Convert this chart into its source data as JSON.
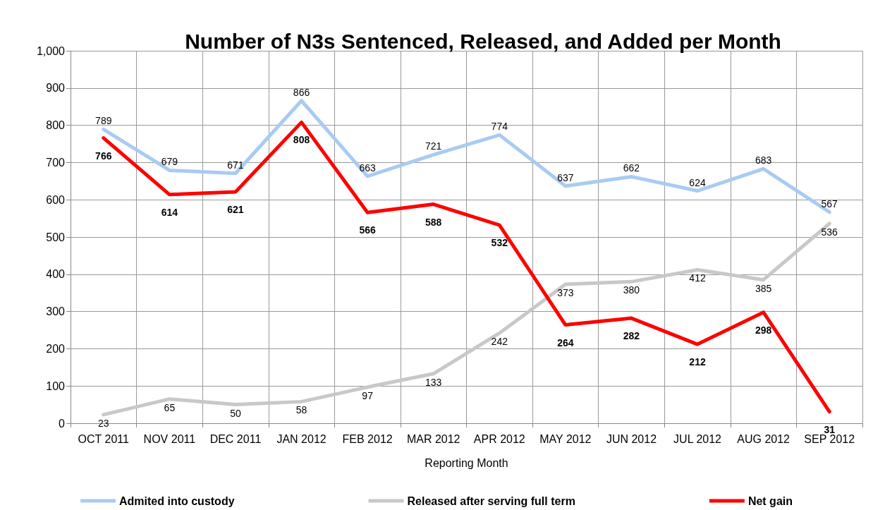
{
  "chart_data": {
    "type": "line",
    "title": "Number of N3s Sentenced, Released, and Added per Month",
    "xlabel": "Reporting Month",
    "categories": [
      "OCT 2011",
      "NOV 2011",
      "DEC 2011",
      "JAN 2012",
      "FEB 2012",
      "MAR 2012",
      "APR 2012",
      "MAY 2012",
      "JUN 2012",
      "JUL 2012",
      "AUG 2012",
      "SEP 2012"
    ],
    "series": [
      {
        "name": "Admited into custody",
        "color": "#a9cbf2",
        "values": [
          789,
          679,
          671,
          866,
          663,
          721,
          774,
          637,
          662,
          624,
          683,
          567
        ]
      },
      {
        "name": "Released after serving full term",
        "color": "#c8c8c8",
        "values": [
          23,
          65,
          50,
          58,
          97,
          133,
          242,
          373,
          380,
          412,
          385,
          536
        ]
      },
      {
        "name": "Net gain",
        "color": "#ff0000",
        "values": [
          766,
          614,
          621,
          808,
          566,
          588,
          532,
          264,
          282,
          212,
          298,
          31
        ]
      }
    ],
    "ylim": [
      0,
      1000
    ],
    "yticks": [
      0,
      {
        "value": 100,
        "label": "100"
      },
      200,
      300,
      400,
      500,
      600,
      700,
      800,
      900,
      {
        "value": 1000,
        "label": "1,000"
      }
    ],
    "grid": true,
    "legend": "bottom",
    "data_labels": true,
    "marker": "none",
    "line_style": "solid"
  }
}
